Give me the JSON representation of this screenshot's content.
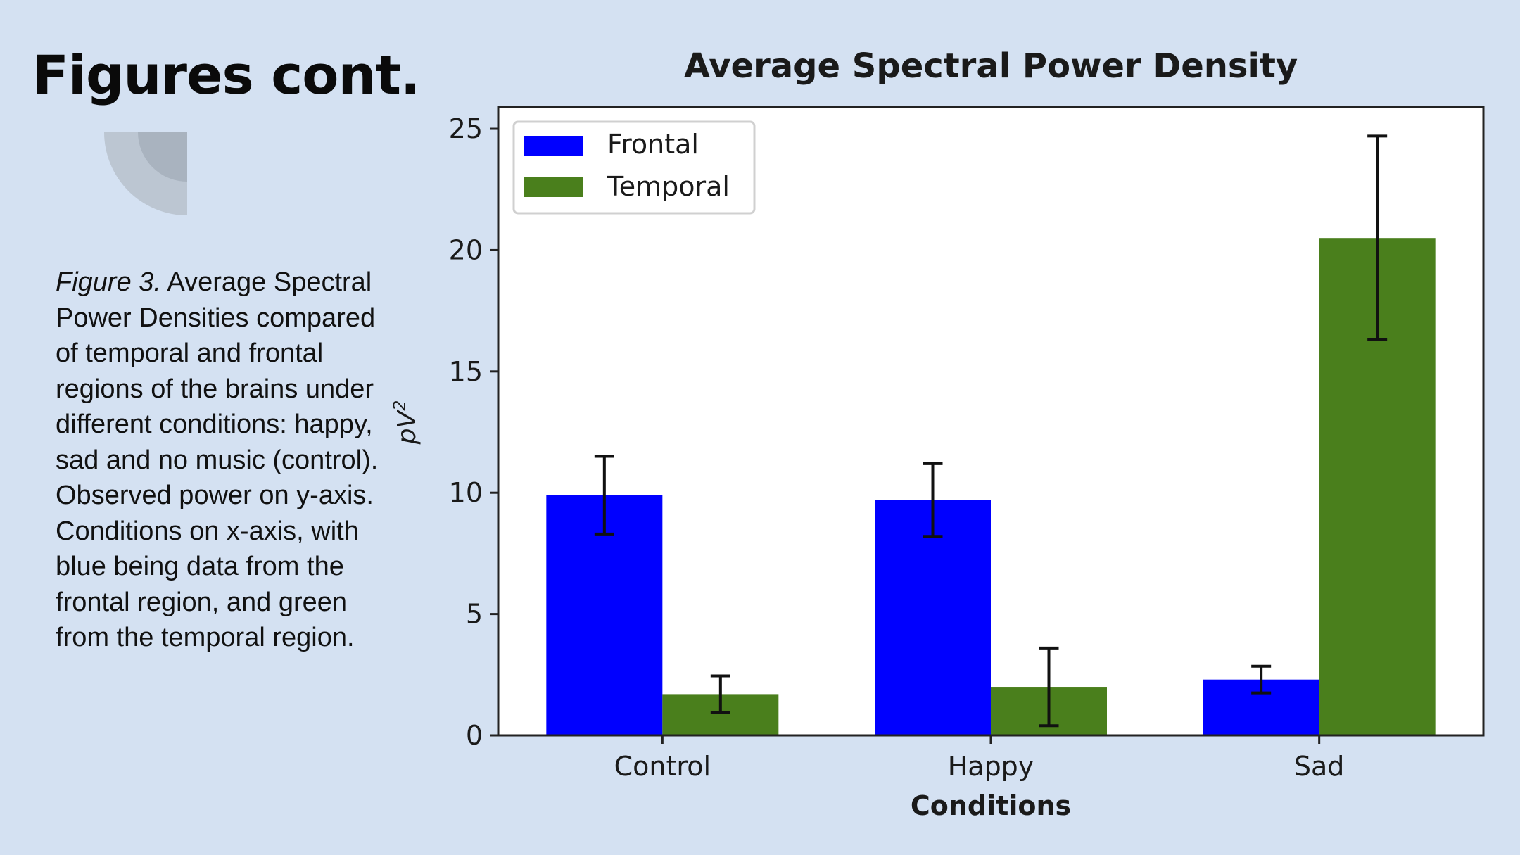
{
  "slide": {
    "title": "Figures cont.",
    "caption_label": "Figure 3.",
    "caption_text": " Average Spectral Power Densities compared of temporal and frontal regions of the brains under different conditions: happy, sad and no music (control). Observed power on y-axis. Conditions on x-axis, with blue being data from the frontal region, and green from the temporal region."
  },
  "chart_data": {
    "type": "bar",
    "title": "Average Spectral Power Density",
    "xlabel": "Conditions",
    "ylabel": "pV",
    "ylabel_superscript": "2",
    "categories": [
      "Control",
      "Happy",
      "Sad"
    ],
    "series": [
      {
        "name": "Frontal",
        "color": "#0000ff",
        "values": [
          9.9,
          9.7,
          2.3
        ],
        "errors": [
          1.6,
          1.5,
          0.55
        ]
      },
      {
        "name": "Temporal",
        "color": "#4a7f1c",
        "values": [
          1.7,
          2.0,
          20.5
        ],
        "errors": [
          0.75,
          1.6,
          4.2
        ]
      }
    ],
    "ylim": [
      0,
      25.9
    ],
    "yticks": [
      0,
      5,
      10,
      15,
      20,
      25
    ],
    "grid": false,
    "legend_position": "top-left"
  }
}
